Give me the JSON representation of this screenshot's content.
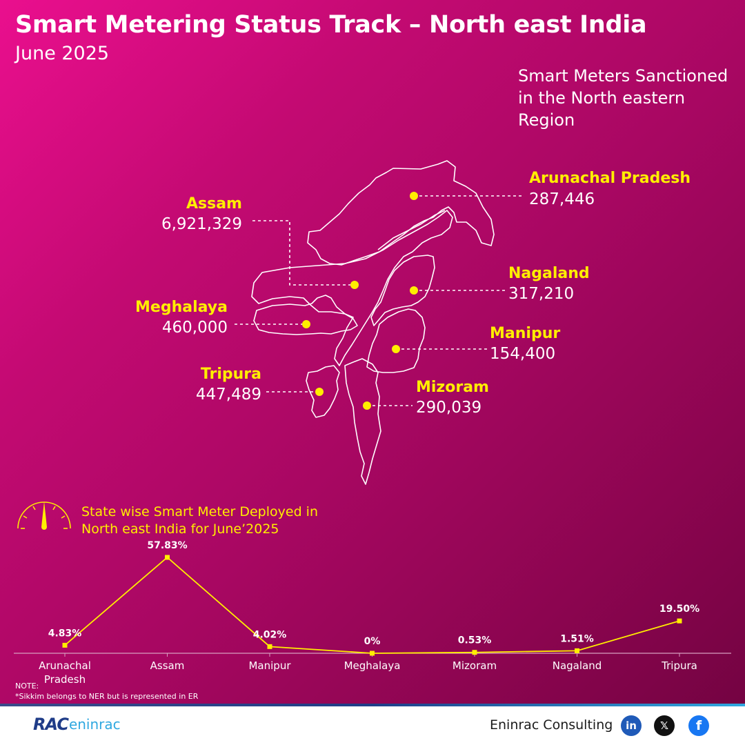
{
  "header": {
    "title": "Smart Metering Status Track – North east India",
    "subtitle": "June 2025"
  },
  "sanctioned": {
    "heading": "Smart Meters Sanctioned in the North eastern Region",
    "states": [
      {
        "name": "Arunachal Pradesh",
        "value": "287,446"
      },
      {
        "name": "Assam",
        "value": "6,921,329"
      },
      {
        "name": "Nagaland",
        "value": "317,210"
      },
      {
        "name": "Meghalaya",
        "value": "460,000"
      },
      {
        "name": "Manipur",
        "value": "154,400"
      },
      {
        "name": "Tripura",
        "value": "447,489"
      },
      {
        "name": "Mizoram",
        "value": "290,039"
      }
    ]
  },
  "deployed": {
    "title": "State wise Smart Meter Deployed in North east India for June’2025"
  },
  "chart_data": {
    "type": "line",
    "categories": [
      "Arunachal Pradesh",
      "Assam",
      "Manipur",
      "Meghalaya",
      "Mizoram",
      "Nagaland",
      "Tripura"
    ],
    "values": [
      4.83,
      57.83,
      4.02,
      0,
      0.53,
      1.51,
      19.5
    ],
    "data_labels": [
      "4.83%",
      "57.83%",
      "4.02%",
      "0%",
      "0.53%",
      "1.51%",
      "19.50%"
    ],
    "title": "State wise Smart Meter Deployed in North east India for June’2025",
    "xlabel": "",
    "ylabel": "",
    "ylim": [
      0,
      60
    ],
    "grid": false,
    "line_color": "#ffee00"
  },
  "note": {
    "label": "NOTE:",
    "text": "*Sikkim belongs to NER but is represented in ER"
  },
  "footer": {
    "logo_mark": "RAC",
    "logo_text": "eninrac",
    "company": "Eninrac Consulting",
    "social": [
      {
        "icon": "linkedin-icon",
        "glyph": "in"
      },
      {
        "icon": "x-icon",
        "glyph": "𝕏"
      },
      {
        "icon": "facebook-icon",
        "glyph": "f"
      }
    ]
  },
  "colors": {
    "accent": "#ffee00",
    "background_start": "#ea0f8e",
    "background_end": "#740342"
  }
}
